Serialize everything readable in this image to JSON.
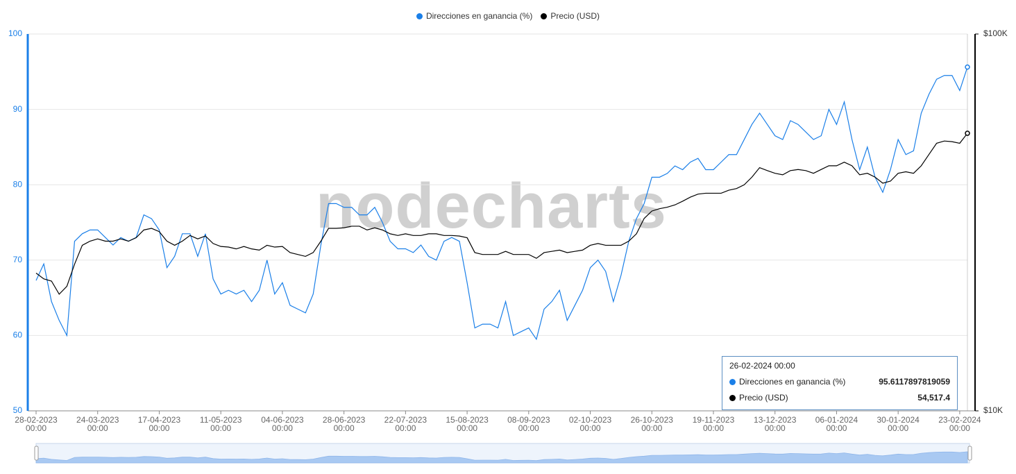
{
  "chart_data": {
    "type": "line",
    "watermark": "nodecharts",
    "x": [
      "28-02-2023",
      "03-03-2023",
      "06-03-2023",
      "09-03-2023",
      "12-03-2023",
      "15-03-2023",
      "18-03-2023",
      "21-03-2023",
      "24-03-2023",
      "27-03-2023",
      "30-03-2023",
      "02-04-2023",
      "05-04-2023",
      "08-04-2023",
      "11-04-2023",
      "14-04-2023",
      "17-04-2023",
      "20-04-2023",
      "23-04-2023",
      "26-04-2023",
      "29-04-2023",
      "02-05-2023",
      "05-05-2023",
      "08-05-2023",
      "11-05-2023",
      "14-05-2023",
      "17-05-2023",
      "20-05-2023",
      "23-05-2023",
      "26-05-2023",
      "29-05-2023",
      "01-06-2023",
      "04-06-2023",
      "07-06-2023",
      "10-06-2023",
      "13-06-2023",
      "16-06-2023",
      "19-06-2023",
      "22-06-2023",
      "25-06-2023",
      "28-06-2023",
      "01-07-2023",
      "04-07-2023",
      "07-07-2023",
      "10-07-2023",
      "13-07-2023",
      "16-07-2023",
      "19-07-2023",
      "22-07-2023",
      "25-07-2023",
      "28-07-2023",
      "31-07-2023",
      "03-08-2023",
      "06-08-2023",
      "09-08-2023",
      "12-08-2023",
      "15-08-2023",
      "18-08-2023",
      "21-08-2023",
      "24-08-2023",
      "27-08-2023",
      "30-08-2023",
      "02-09-2023",
      "05-09-2023",
      "08-09-2023",
      "11-09-2023",
      "14-09-2023",
      "17-09-2023",
      "20-09-2023",
      "23-09-2023",
      "26-09-2023",
      "29-09-2023",
      "02-10-2023",
      "05-10-2023",
      "08-10-2023",
      "11-10-2023",
      "14-10-2023",
      "17-10-2023",
      "20-10-2023",
      "23-10-2023",
      "26-10-2023",
      "29-10-2023",
      "01-11-2023",
      "04-11-2023",
      "07-11-2023",
      "10-11-2023",
      "13-11-2023",
      "16-11-2023",
      "19-11-2023",
      "22-11-2023",
      "25-11-2023",
      "28-11-2023",
      "01-12-2023",
      "04-12-2023",
      "07-12-2023",
      "10-12-2023",
      "13-12-2023",
      "16-12-2023",
      "19-12-2023",
      "22-12-2023",
      "25-12-2023",
      "28-12-2023",
      "31-12-2023",
      "03-01-2024",
      "06-01-2024",
      "09-01-2024",
      "12-01-2024",
      "15-01-2024",
      "18-01-2024",
      "21-01-2024",
      "24-01-2024",
      "27-01-2024",
      "30-01-2024",
      "02-02-2024",
      "05-02-2024",
      "08-02-2024",
      "11-02-2024",
      "14-02-2024",
      "17-02-2024",
      "20-02-2024",
      "23-02-2024",
      "26-02-2024"
    ],
    "series": [
      {
        "name": "Direcciones en ganancia (%)",
        "color": "#1a7fe8",
        "axis": "y",
        "values": [
          67.3,
          69.5,
          64.5,
          62,
          60,
          72.5,
          73.5,
          74,
          74,
          73,
          72,
          73,
          72.5,
          73,
          76,
          75.5,
          74,
          69,
          70.5,
          73.5,
          73.5,
          70.5,
          73.5,
          67.5,
          65.5,
          66,
          65.5,
          66,
          64.5,
          66,
          70,
          65.5,
          67,
          64,
          63.5,
          63,
          65.5,
          72,
          77.5,
          77.5,
          77,
          77,
          76,
          76,
          77,
          75,
          72.5,
          71.5,
          71.5,
          71,
          72,
          70.5,
          70,
          72.5,
          73,
          72.5,
          67,
          61,
          61.5,
          61.5,
          61,
          64.5,
          60,
          60.5,
          61,
          59.5,
          63.5,
          64.5,
          66,
          62,
          64,
          66,
          69,
          70,
          68.5,
          64.5,
          68,
          72.5,
          75.5,
          77.5,
          81,
          81,
          81.5,
          82.5,
          82,
          83,
          83.5,
          82,
          82,
          83,
          84,
          84,
          86,
          88,
          89.5,
          88,
          86.5,
          86,
          88.5,
          88,
          87,
          86,
          86.5,
          90,
          88,
          91,
          86,
          82,
          85,
          81,
          79,
          82,
          86,
          84,
          84.5,
          89.5,
          92,
          94,
          94.5,
          94.5,
          92.5,
          95.6117897819059
        ]
      },
      {
        "name": "Precio (USD)",
        "color": "#000000",
        "axis": "y2",
        "values": [
          23200,
          22400,
          22100,
          20400,
          21400,
          24500,
          27500,
          28200,
          28600,
          28200,
          28200,
          28600,
          28200,
          28800,
          30200,
          30500,
          29900,
          28200,
          27500,
          28200,
          29200,
          28600,
          29100,
          27800,
          27300,
          27200,
          26900,
          27300,
          26900,
          26700,
          27500,
          27200,
          27300,
          26300,
          26000,
          25700,
          26300,
          28200,
          30500,
          30500,
          30600,
          30900,
          30900,
          30200,
          30600,
          30200,
          29500,
          29200,
          29500,
          29200,
          29200,
          29500,
          29500,
          29200,
          29200,
          29100,
          28800,
          26300,
          26000,
          26000,
          26000,
          26500,
          26000,
          26000,
          26000,
          25400,
          26300,
          26500,
          26700,
          26300,
          26500,
          26700,
          27500,
          27800,
          27500,
          27500,
          27500,
          28200,
          29500,
          32400,
          33900,
          34400,
          34700,
          35200,
          36000,
          36900,
          37600,
          37800,
          37800,
          37800,
          38500,
          38900,
          39800,
          41700,
          44200,
          43400,
          42700,
          42300,
          43400,
          43700,
          43400,
          42700,
          43700,
          44700,
          44700,
          45700,
          44700,
          42300,
          42700,
          41700,
          40200,
          40700,
          42700,
          43100,
          42700,
          44700,
          47900,
          51300,
          52000,
          51800,
          51300,
          54517.4
        ]
      }
    ],
    "xticks": [
      "28-02-2023 00:00",
      "24-03-2023 00:00",
      "17-04-2023 00:00",
      "11-05-2023 00:00",
      "04-06-2023 00:00",
      "28-06-2023 00:00",
      "22-07-2023 00:00",
      "15-08-2023 00:00",
      "08-09-2023 00:00",
      "02-10-2023 00:00",
      "26-10-2023 00:00",
      "19-11-2023 00:00",
      "13-12-2023 00:00",
      "06-01-2024 00:00",
      "30-01-2024 00:00",
      "23-02-2024 00:00"
    ],
    "ylim": [
      50,
      100
    ],
    "yticks": [
      50,
      60,
      70,
      80,
      90,
      100
    ],
    "y2lim": [
      10000,
      100000
    ],
    "y2scale": "log",
    "y2ticks": [
      {
        "value": 10000,
        "label": "$10K"
      },
      {
        "value": 100000,
        "label": "$100K"
      }
    ],
    "grid": true,
    "legend": "top",
    "tooltip": {
      "title": "26-02-2024 00:00",
      "values": [
        "95.6117897819059",
        "54,517.4"
      ]
    }
  }
}
